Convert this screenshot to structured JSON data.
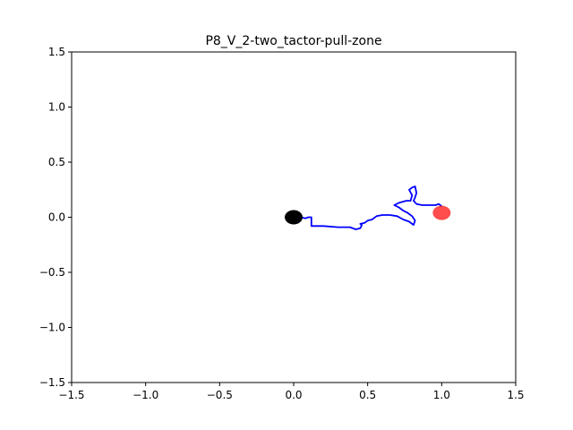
{
  "chart_data": {
    "type": "line",
    "title": "P8_V_2-two_tactor-pull-zone",
    "xlabel": "",
    "ylabel": "",
    "xlim": [
      -1.5,
      1.5
    ],
    "ylim": [
      -1.5,
      1.5
    ],
    "grid": false,
    "x_ticks": [
      -1.5,
      -1.0,
      -0.5,
      0.0,
      0.5,
      1.0,
      1.5
    ],
    "x_tick_labels": [
      "−1.5",
      "−1.0",
      "−0.5",
      "0.0",
      "0.5",
      "1.0",
      "1.5"
    ],
    "y_ticks": [
      -1.5,
      -1.0,
      -0.5,
      0.0,
      0.5,
      1.0,
      1.5
    ],
    "y_tick_labels": [
      "−1.5",
      "−1.0",
      "−0.5",
      "0.0",
      "0.5",
      "1.0",
      "1.5"
    ],
    "series": [
      {
        "color": "#0000ff",
        "points": [
          [
            -0.02,
            0.0
          ],
          [
            0.0,
            -0.02
          ],
          [
            0.02,
            0.01
          ],
          [
            0.05,
            0.0
          ],
          [
            0.08,
            -0.01
          ],
          [
            0.1,
            0.0
          ],
          [
            0.12,
            0.0
          ],
          [
            0.12,
            -0.08
          ],
          [
            0.2,
            -0.08
          ],
          [
            0.3,
            -0.09
          ],
          [
            0.38,
            -0.09
          ],
          [
            0.42,
            -0.11
          ],
          [
            0.45,
            -0.1
          ],
          [
            0.46,
            -0.07
          ],
          [
            0.45,
            -0.06
          ],
          [
            0.48,
            -0.05
          ],
          [
            0.5,
            -0.03
          ],
          [
            0.53,
            -0.02
          ],
          [
            0.56,
            0.01
          ],
          [
            0.6,
            0.02
          ],
          [
            0.65,
            0.02
          ],
          [
            0.7,
            0.01
          ],
          [
            0.74,
            -0.02
          ],
          [
            0.78,
            -0.04
          ],
          [
            0.81,
            -0.07
          ],
          [
            0.82,
            -0.03
          ],
          [
            0.8,
            0.01
          ],
          [
            0.77,
            0.04
          ],
          [
            0.74,
            0.06
          ],
          [
            0.71,
            0.09
          ],
          [
            0.68,
            0.11
          ],
          [
            0.71,
            0.13
          ],
          [
            0.76,
            0.15
          ],
          [
            0.79,
            0.15
          ],
          [
            0.8,
            0.2
          ],
          [
            0.78,
            0.25
          ],
          [
            0.8,
            0.27
          ],
          [
            0.82,
            0.28
          ],
          [
            0.83,
            0.22
          ],
          [
            0.82,
            0.18
          ],
          [
            0.81,
            0.15
          ],
          [
            0.83,
            0.12
          ],
          [
            0.87,
            0.11
          ],
          [
            0.92,
            0.11
          ],
          [
            0.96,
            0.11
          ],
          [
            0.98,
            0.12
          ],
          [
            1.0,
            0.1
          ]
        ]
      }
    ],
    "markers": [
      {
        "x": 0.0,
        "y": 0.0,
        "color": "#000000",
        "alpha": 1.0
      },
      {
        "x": 1.0,
        "y": 0.04,
        "color": "#ff0000",
        "alpha": 0.7
      }
    ]
  }
}
